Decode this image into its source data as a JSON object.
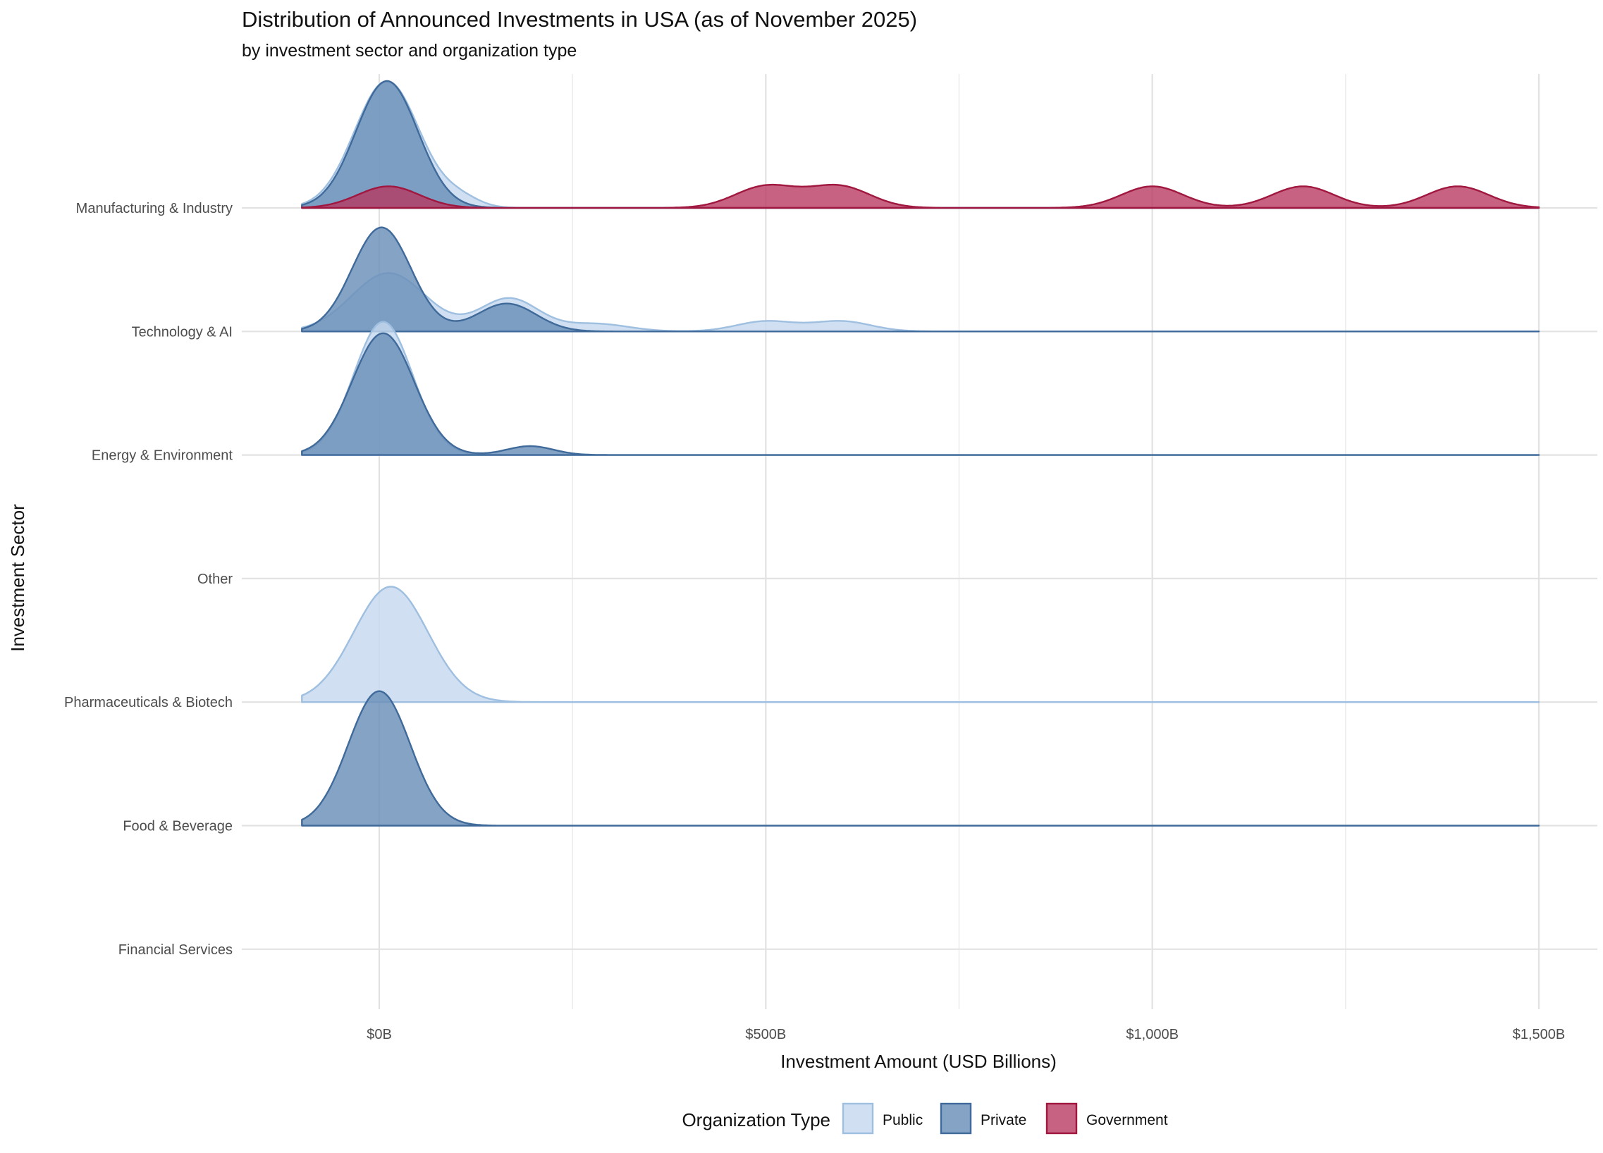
{
  "chart_data": {
    "type": "ridgeline",
    "title": "Distribution of Announced Investments in USA (as of November 2025)",
    "subtitle": "by investment sector and organization type",
    "xlabel": "Investment Amount (USD Billions)",
    "ylabel": "Investment Sector",
    "xlim": [
      -100,
      1500
    ],
    "x_ticks": [
      {
        "value": 0,
        "label": "$0B"
      },
      {
        "value": 500,
        "label": "$500B"
      },
      {
        "value": 1000,
        "label": "$1,000B"
      },
      {
        "value": 1500,
        "label": "$1,500B"
      }
    ],
    "categories": [
      "Manufacturing & Industry",
      "Technology & AI",
      "Energy & Environment",
      "Other",
      "Pharmaceuticals & Biotech",
      "Food & Beverage",
      "Financial Services"
    ],
    "legend": {
      "title": "Organization Type",
      "position": "bottom",
      "entries": [
        {
          "name": "Public",
          "fill": "#c6d9ef",
          "stroke": "#9fbfe0"
        },
        {
          "name": "Private",
          "fill": "#6a8fb8",
          "stroke": "#3f6a9a"
        },
        {
          "name": "Government",
          "fill": "#b7365f",
          "stroke": "#a0173f"
        }
      ]
    },
    "ridges": [
      {
        "category": "Manufacturing & Industry",
        "type": "Public",
        "peaks": [
          [
            10,
            42,
            1.0
          ],
          [
            105,
            25,
            0.07
          ]
        ]
      },
      {
        "category": "Manufacturing & Industry",
        "type": "Private",
        "peaks": [
          [
            10,
            40,
            1.0
          ]
        ]
      },
      {
        "category": "Manufacturing & Industry",
        "type": "Government",
        "peaks": [
          [
            12,
            40,
            0.17
          ],
          [
            500,
            40,
            0.17
          ],
          [
            595,
            40,
            0.17
          ],
          [
            1000,
            40,
            0.17
          ],
          [
            1195,
            40,
            0.17
          ],
          [
            1395,
            40,
            0.17
          ]
        ]
      },
      {
        "category": "Technology & AI",
        "type": "Public",
        "peaks": [
          [
            12,
            48,
            0.46
          ],
          [
            168,
            38,
            0.26
          ],
          [
            280,
            42,
            0.06
          ],
          [
            500,
            38,
            0.08
          ],
          [
            598,
            38,
            0.08
          ]
        ]
      },
      {
        "category": "Technology & AI",
        "type": "Private",
        "peaks": [
          [
            3,
            38,
            0.82
          ],
          [
            165,
            38,
            0.22
          ]
        ]
      },
      {
        "category": "Energy & Environment",
        "type": "Public",
        "peaks": [
          [
            5,
            38,
            1.05
          ]
        ]
      },
      {
        "category": "Energy & Environment",
        "type": "Private",
        "peaks": [
          [
            5,
            40,
            0.96
          ],
          [
            195,
            30,
            0.07
          ]
        ]
      },
      {
        "category": "Pharmaceuticals & Biotech",
        "type": "Public",
        "peaks": [
          [
            15,
            48,
            0.91
          ]
        ]
      },
      {
        "category": "Food & Beverage",
        "type": "Private",
        "peaks": [
          [
            0,
            40,
            1.06
          ]
        ]
      }
    ]
  }
}
